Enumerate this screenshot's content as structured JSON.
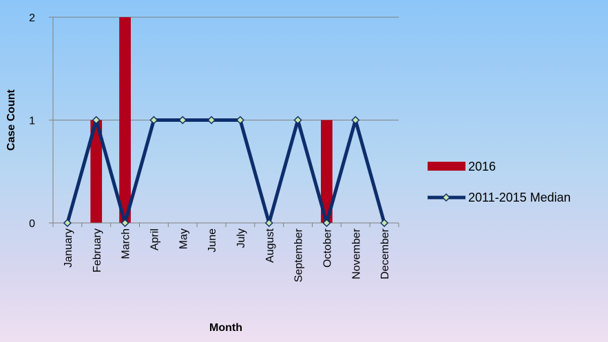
{
  "chart_data": {
    "type": "bar",
    "categories": [
      "January",
      "February",
      "March",
      "April",
      "May",
      "June",
      "July",
      "August",
      "September",
      "October",
      "November",
      "December"
    ],
    "series": [
      {
        "name": "2016",
        "type": "bar",
        "color": "#b3001b",
        "values": [
          0,
          1,
          2,
          0,
          0,
          0,
          0,
          0,
          0,
          1,
          0,
          0
        ]
      },
      {
        "name": "2011-2015 Median",
        "type": "line",
        "color": "#0d2d6b",
        "marker_color": "#c9e6a8",
        "values": [
          0,
          1,
          0,
          1,
          1,
          1,
          1,
          0,
          1,
          0,
          1,
          0
        ]
      }
    ],
    "title": "",
    "xlabel": "Month",
    "ylabel": "Case Count",
    "ylim": [
      0,
      2
    ],
    "yticks": [
      "0",
      "1",
      "2"
    ],
    "grid": true,
    "legend_position": "right"
  }
}
